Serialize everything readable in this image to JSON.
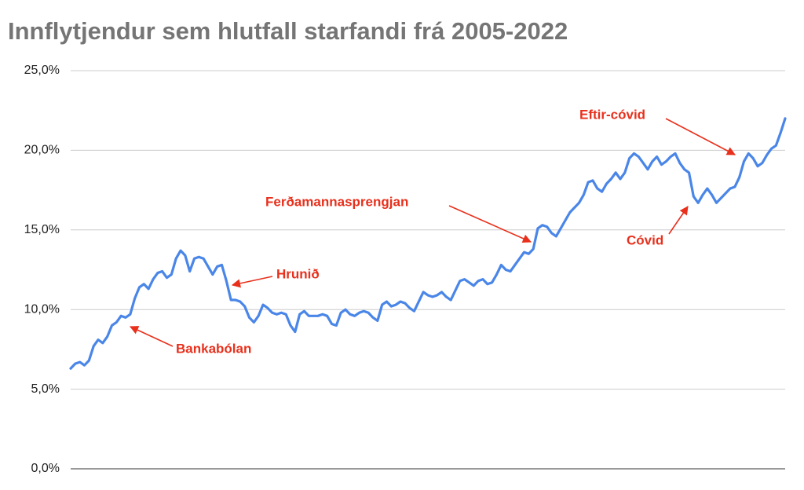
{
  "chart_data": {
    "type": "line",
    "title": "Innflytjendur sem hlutfall starfandi frá 2005-2022",
    "values": [
      6.3,
      6.6,
      6.7,
      6.5,
      6.8,
      7.7,
      8.1,
      7.9,
      8.3,
      9.0,
      9.2,
      9.6,
      9.5,
      9.7,
      10.7,
      11.4,
      11.6,
      11.3,
      11.9,
      12.3,
      12.4,
      12.0,
      12.2,
      13.2,
      13.7,
      13.4,
      12.4,
      13.2,
      13.3,
      13.2,
      12.7,
      12.2,
      12.7,
      12.8,
      11.8,
      10.6,
      10.6,
      10.5,
      10.2,
      9.5,
      9.2,
      9.6,
      10.3,
      10.1,
      9.8,
      9.7,
      9.8,
      9.7,
      9.0,
      8.6,
      9.7,
      9.9,
      9.6,
      9.6,
      9.6,
      9.7,
      9.6,
      9.1,
      9.0,
      9.8,
      10.0,
      9.7,
      9.6,
      9.8,
      9.9,
      9.8,
      9.5,
      9.3,
      10.3,
      10.5,
      10.2,
      10.3,
      10.5,
      10.4,
      10.1,
      9.9,
      10.5,
      11.1,
      10.9,
      10.8,
      10.9,
      11.1,
      10.8,
      10.6,
      11.2,
      11.8,
      11.9,
      11.7,
      11.5,
      11.8,
      11.9,
      11.6,
      11.7,
      12.2,
      12.8,
      12.5,
      12.4,
      12.8,
      13.2,
      13.6,
      13.5,
      13.8,
      15.1,
      15.3,
      15.2,
      14.8,
      14.6,
      15.1,
      15.6,
      16.1,
      16.4,
      16.7,
      17.2,
      18.0,
      18.1,
      17.6,
      17.4,
      17.9,
      18.2,
      18.6,
      18.2,
      18.6,
      19.5,
      19.8,
      19.6,
      19.2,
      18.8,
      19.3,
      19.6,
      19.1,
      19.3,
      19.6,
      19.8,
      19.2,
      18.8,
      18.6,
      17.1,
      16.7,
      17.2,
      17.6,
      17.2,
      16.7,
      17.0,
      17.3,
      17.6,
      17.7,
      18.3,
      19.3,
      19.8,
      19.5,
      19.0,
      19.2,
      19.7,
      20.1,
      20.3,
      21.1,
      22.0
    ],
    "color": "#4a86e8",
    "ylim": [
      0,
      25
    ],
    "yticks": [
      {
        "value": 0,
        "label": "0,0%"
      },
      {
        "value": 5,
        "label": "5,0%"
      },
      {
        "value": 10,
        "label": "10,0%"
      },
      {
        "value": 15,
        "label": "15,0%"
      },
      {
        "value": 20,
        "label": "20,0%"
      },
      {
        "value": 25,
        "label": "25,0%"
      }
    ],
    "grid": true,
    "annotations": [
      "Bankabólan",
      "Hrunið",
      "Ferðamannasprengjan",
      "Cóvid",
      "Eftir-cóvid"
    ],
    "annotation_color": "#e8301c"
  }
}
